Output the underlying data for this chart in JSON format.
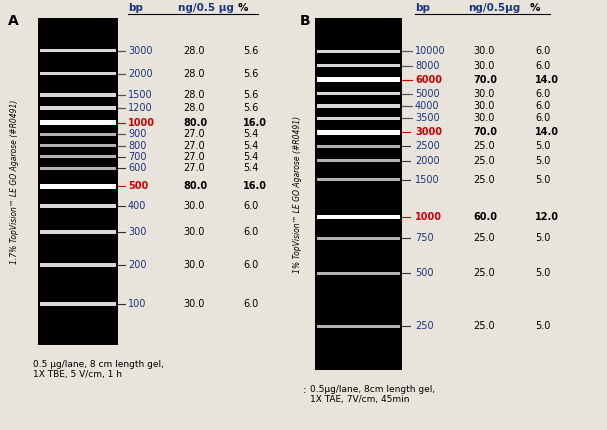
{
  "panel_A": {
    "label": "A",
    "header_bp": "bp",
    "header_ng": "ng/0.5 μg",
    "header_pct": "%",
    "bands": [
      {
        "bp": "3000",
        "ng": "28.0",
        "pct": "5.6",
        "color": "blue",
        "bold": false,
        "line_style": "diag"
      },
      {
        "bp": "2000",
        "ng": "28.0",
        "pct": "5.6",
        "color": "blue",
        "bold": false,
        "line_style": "diag"
      },
      {
        "bp": "1500",
        "ng": "28.0",
        "pct": "5.6",
        "color": "blue",
        "bold": false,
        "line_style": "diag"
      },
      {
        "bp": "1200",
        "ng": "28.0",
        "pct": "5.6",
        "color": "blue",
        "bold": false,
        "line_style": "diag"
      },
      {
        "bp": "1000",
        "ng": "80.0",
        "pct": "16.0",
        "color": "red",
        "bold": true,
        "line_style": "diag_red"
      },
      {
        "bp": "900",
        "ng": "27.0",
        "pct": "5.4",
        "color": "blue",
        "bold": false,
        "line_style": "diag"
      },
      {
        "bp": "800",
        "ng": "27.0",
        "pct": "5.4",
        "color": "blue",
        "bold": false,
        "line_style": "diag"
      },
      {
        "bp": "700",
        "ng": "27.0",
        "pct": "5.4",
        "color": "blue",
        "bold": false,
        "line_style": "flat"
      },
      {
        "bp": "600",
        "ng": "27.0",
        "pct": "5.4",
        "color": "blue",
        "bold": false,
        "line_style": "flat"
      },
      {
        "bp": "500",
        "ng": "80.0",
        "pct": "16.0",
        "color": "red",
        "bold": true,
        "line_style": "flat_red"
      },
      {
        "bp": "400",
        "ng": "30.0",
        "pct": "6.0",
        "color": "blue",
        "bold": false,
        "line_style": "flat"
      },
      {
        "bp": "300",
        "ng": "30.0",
        "pct": "6.0",
        "color": "blue",
        "bold": false,
        "line_style": "flat"
      },
      {
        "bp": "200",
        "ng": "30.0",
        "pct": "6.0",
        "color": "blue",
        "bold": false,
        "line_style": "flat"
      },
      {
        "bp": "100",
        "ng": "30.0",
        "pct": "6.0",
        "color": "blue",
        "bold": false,
        "line_style": "flat"
      }
    ],
    "y_label": "1.7% TopVision™ LE GO Agarose (#R0491)",
    "caption": "0.5 μg/lane, 8 cm length gel,\n1X TBE, 5 V/cm, 1 h",
    "gel_bands_rel": [
      0.1,
      0.17,
      0.235,
      0.275,
      0.32,
      0.355,
      0.39,
      0.425,
      0.46,
      0.515,
      0.575,
      0.655,
      0.755,
      0.875
    ],
    "band_ng": [
      28,
      28,
      28,
      28,
      80,
      27,
      27,
      27,
      27,
      80,
      30,
      30,
      30,
      30
    ]
  },
  "panel_B": {
    "label": "B",
    "header_bp": "bp",
    "header_ng": "ng/0.5μg",
    "header_pct": "%",
    "bands": [
      {
        "bp": "10000",
        "ng": "30.0",
        "pct": "6.0",
        "color": "blue",
        "bold": false,
        "line_style": "diag"
      },
      {
        "bp": "8000",
        "ng": "30.0",
        "pct": "6.0",
        "color": "blue",
        "bold": false,
        "line_style": "diag"
      },
      {
        "bp": "6000",
        "ng": "70.0",
        "pct": "14.0",
        "color": "red",
        "bold": true,
        "line_style": "diag_red"
      },
      {
        "bp": "5000",
        "ng": "30.0",
        "pct": "6.0",
        "color": "blue",
        "bold": false,
        "line_style": "diag"
      },
      {
        "bp": "4000",
        "ng": "30.0",
        "pct": "6.0",
        "color": "blue",
        "bold": false,
        "line_style": "diag"
      },
      {
        "bp": "3500",
        "ng": "30.0",
        "pct": "6.0",
        "color": "blue",
        "bold": false,
        "line_style": "diag"
      },
      {
        "bp": "3000",
        "ng": "70.0",
        "pct": "14.0",
        "color": "red",
        "bold": true,
        "line_style": "flat_red"
      },
      {
        "bp": "2500",
        "ng": "25.0",
        "pct": "5.0",
        "color": "blue",
        "bold": false,
        "line_style": "flat"
      },
      {
        "bp": "2000",
        "ng": "25.0",
        "pct": "5.0",
        "color": "blue",
        "bold": false,
        "line_style": "flat"
      },
      {
        "bp": "1500",
        "ng": "25.0",
        "pct": "5.0",
        "color": "blue",
        "bold": false,
        "line_style": "flat"
      },
      {
        "bp": "1000",
        "ng": "60.0",
        "pct": "12.0",
        "color": "red",
        "bold": true,
        "line_style": "flat_red"
      },
      {
        "bp": "750",
        "ng": "25.0",
        "pct": "5.0",
        "color": "blue",
        "bold": false,
        "line_style": "flat"
      },
      {
        "bp": "500",
        "ng": "25.0",
        "pct": "5.0",
        "color": "blue",
        "bold": false,
        "line_style": "flat"
      },
      {
        "bp": "250",
        "ng": "25.0",
        "pct": "5.0",
        "color": "blue",
        "bold": false,
        "line_style": "flat"
      }
    ],
    "y_label": "1% TopVision™ LE GO Agarose (#R0491)",
    "caption": "0.5μg/lane, 8cm length gel,\n1X TAE, 7V/cm, 45min",
    "gel_bands_rel": [
      0.095,
      0.135,
      0.175,
      0.215,
      0.25,
      0.285,
      0.325,
      0.365,
      0.405,
      0.46,
      0.565,
      0.625,
      0.725,
      0.875
    ],
    "band_ng": [
      30,
      30,
      70,
      30,
      30,
      30,
      70,
      25,
      25,
      25,
      60,
      25,
      25,
      25
    ]
  },
  "bg_color": "#e8e4dc",
  "text_color_blue": "#1a3580",
  "text_color_red": "#cc0000",
  "header_fontsize": 7.5,
  "band_fontsize": 7.0,
  "caption_fontsize": 6.5,
  "label_fontsize": 10
}
